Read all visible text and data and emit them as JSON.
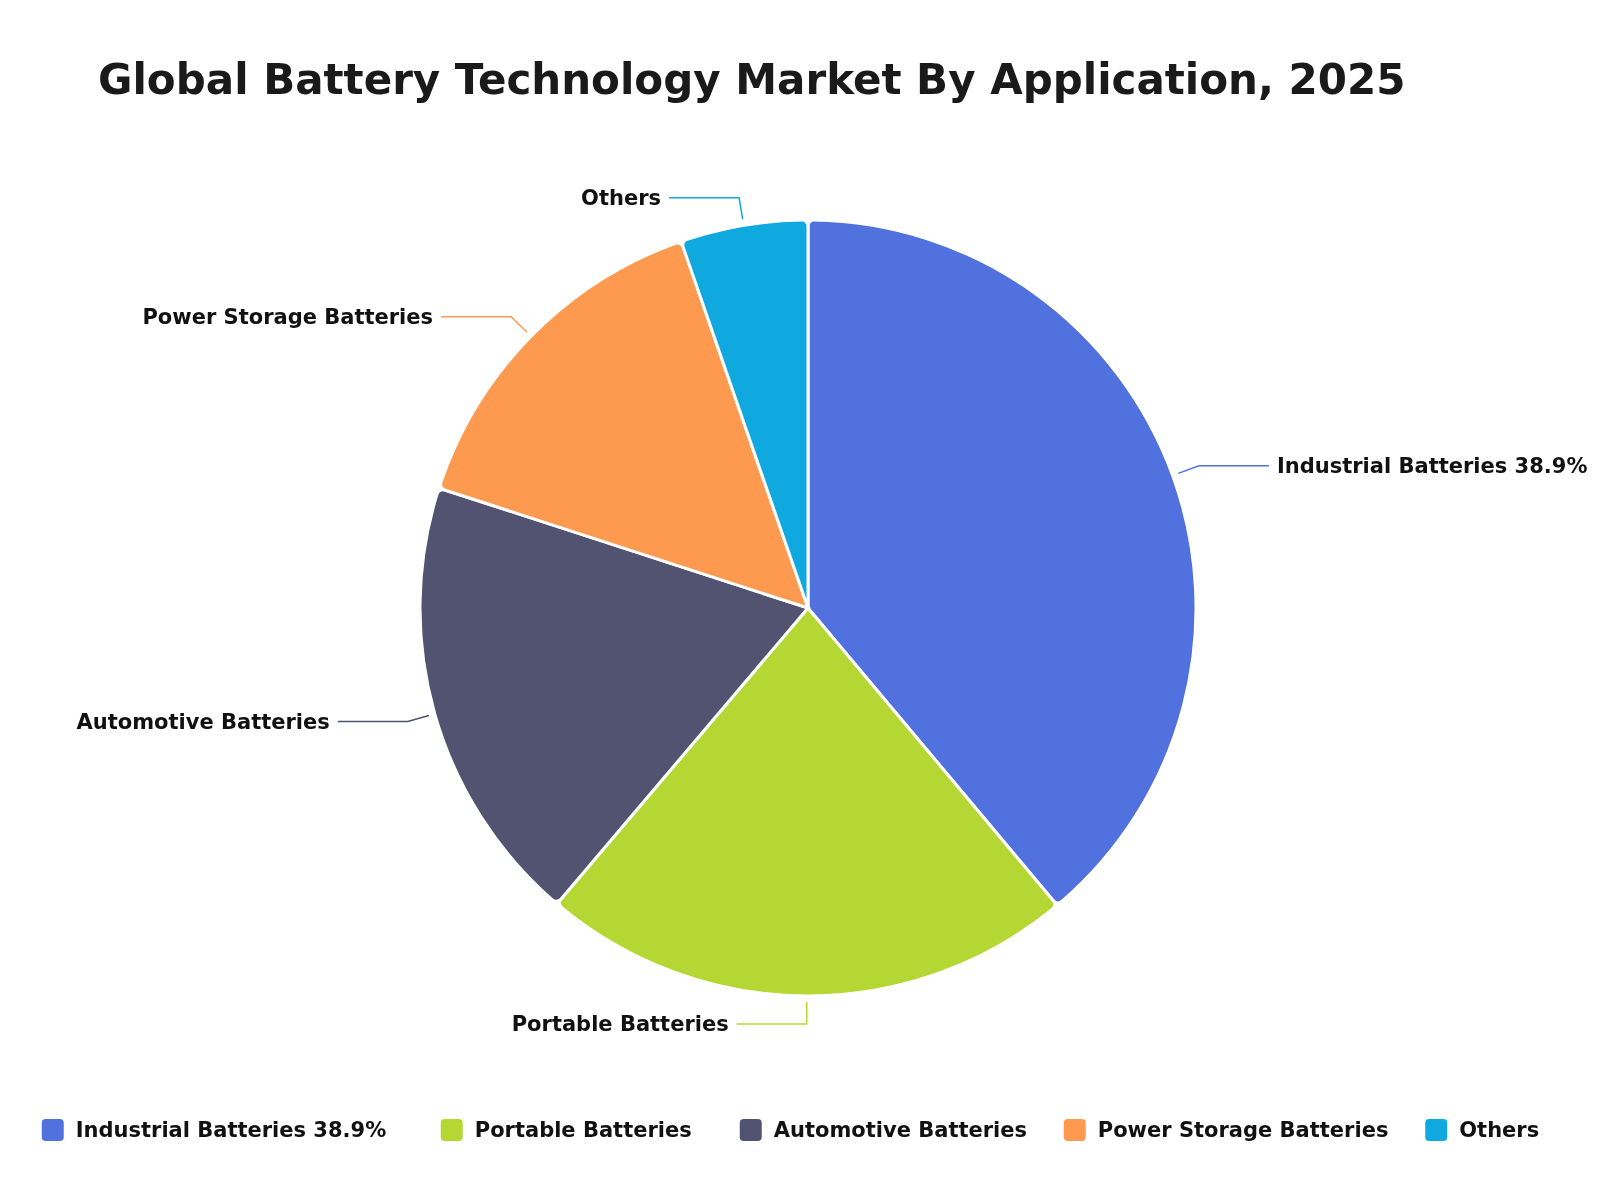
{
  "chart_data": {
    "type": "pie",
    "title": "Global Battery Technology Market By Application, 2025",
    "categories": [
      "Industrial Batteries 38.9%",
      "Portable Batteries",
      "Automotive Batteries",
      "Power Storage Batteries",
      "Others"
    ],
    "values": [
      38.9,
      22.3,
      18.8,
      14.7,
      5.3
    ],
    "colors": [
      "#5171de",
      "#b5d733",
      "#515370",
      "#fe9a4f",
      "#0fa8df"
    ],
    "legend": "bottom"
  }
}
